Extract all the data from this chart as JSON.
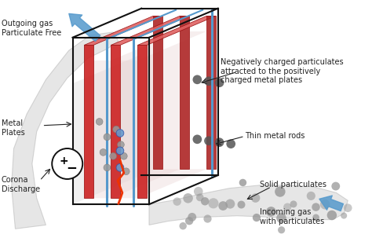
{
  "bg_color": "#ffffff",
  "plate_color": "#cc2222",
  "plate_top_color": "#e06060",
  "plate_side_color": "#aa1a1a",
  "box_color": "#111111",
  "gas_color_out": "#c8c8c8",
  "gas_color_in": "#c8c8c8",
  "rod_color": "#5599cc",
  "particle_color": "#888888",
  "particle_blue_color": "#6699cc",
  "arrow_color": "#5599cc",
  "annotation_color": "#222222",
  "labels": {
    "outgoing": "Outgoing gas\nParticulate Free",
    "metal_plates": "Metal\nPlates",
    "corona": "Corona\nDischarge",
    "neg_particles": "Negatively charged particulates\nattracted to the positively\ncharged metal plates",
    "thin_rods": "Thin metal rods",
    "solid_particulates": "Solid particulates",
    "incoming": "Incoming gas\nwith particulates"
  },
  "fontsize": 7.0
}
